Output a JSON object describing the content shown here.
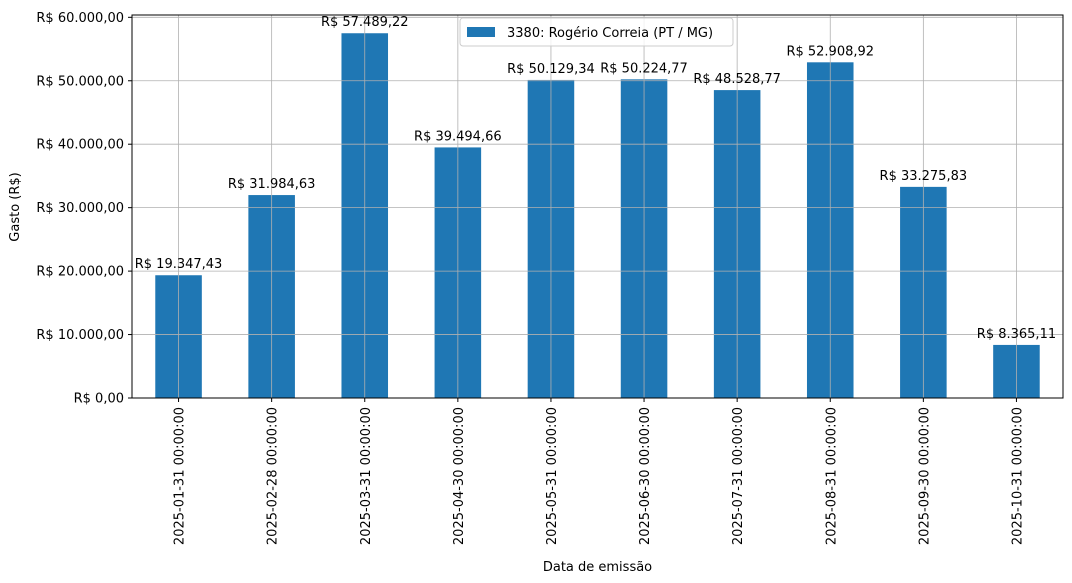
{
  "chart_data": {
    "type": "bar",
    "categories": [
      "2025-01-31 00:00:00",
      "2025-02-28 00:00:00",
      "2025-03-31 00:00:00",
      "2025-04-30 00:00:00",
      "2025-05-31 00:00:00",
      "2025-06-30 00:00:00",
      "2025-07-31 00:00:00",
      "2025-08-31 00:00:00",
      "2025-09-30 00:00:00",
      "2025-10-31 00:00:00"
    ],
    "series": [
      {
        "name": "3380: Rogério Correia (PT / MG)",
        "color": "#1f77b4",
        "values": [
          19347.43,
          31984.63,
          57489.22,
          39494.66,
          50129.34,
          50224.77,
          48528.77,
          52908.92,
          33275.83,
          8365.11
        ]
      }
    ],
    "data_labels": [
      "R$ 19.347,43",
      "R$ 31.984,63",
      "R$ 57.489,22",
      "R$ 39.494,66",
      "R$ 50.129,34",
      "R$ 50.224,77",
      "R$ 48.528,77",
      "R$ 52.908,92",
      "R$ 33.275,83",
      "R$ 8.365,11"
    ],
    "yticks": [
      0,
      10000,
      20000,
      30000,
      40000,
      50000,
      60000
    ],
    "ytick_labels": [
      "R$ 0,00",
      "R$ 10.000,00",
      "R$ 20.000,00",
      "R$ 30.000,00",
      "R$ 40.000,00",
      "R$ 50.000,00",
      "R$ 60.000,00"
    ],
    "ylim": [
      0,
      60364.68
    ],
    "xlabel": "Data de emissão",
    "ylabel": "Gasto (R$)",
    "grid": true,
    "legend_position": "top-center"
  }
}
